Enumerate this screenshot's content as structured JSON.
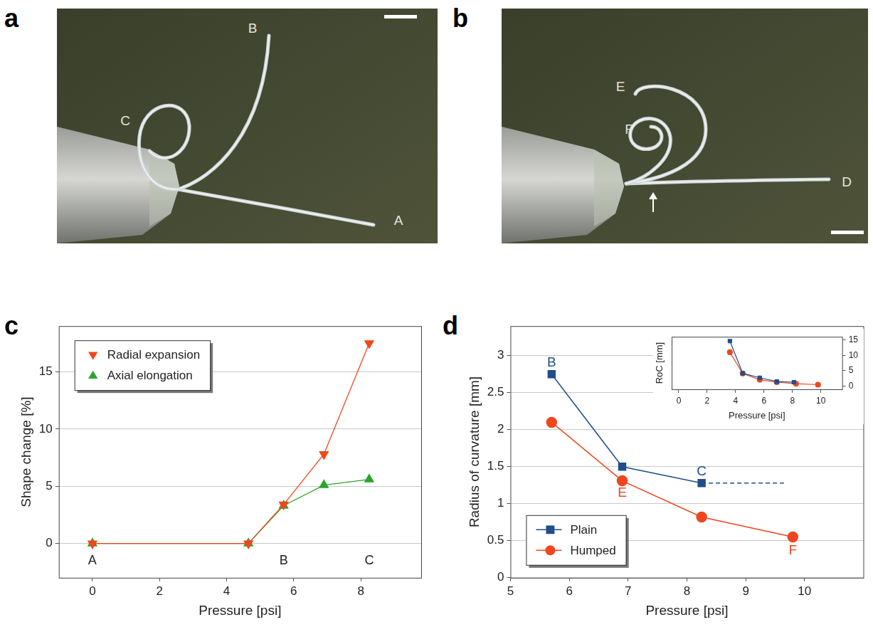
{
  "images": [
    {
      "panel": "a",
      "labels": [
        "A",
        "B",
        "C"
      ]
    },
    {
      "panel": "b",
      "labels": [
        "D",
        "E",
        "F"
      ]
    }
  ],
  "chart_data": [
    {
      "panel": "c",
      "type": "line",
      "x_label": "Pressure [psi]",
      "y_label": "Shape change [%]",
      "xlim": [
        -1,
        9.8
      ],
      "xticks": [
        0,
        2,
        4,
        6,
        8
      ],
      "ylim": [
        -3,
        19
      ],
      "yticks": [
        0,
        5,
        10,
        15
      ],
      "grid": "y",
      "legend": "upper left",
      "series": [
        {
          "name": "Radial expansion",
          "color": "#f0461e",
          "marker": "triangle_down",
          "x": [
            0,
            4.65,
            5.7,
            6.9,
            8.25
          ],
          "values": [
            0,
            0,
            3.4,
            7.8,
            17.5
          ]
        },
        {
          "name": "Axial elongation",
          "color": "#2aa52a",
          "marker": "triangle",
          "x": [
            0,
            4.65,
            5.7,
            6.9,
            8.25
          ],
          "values": [
            0,
            0,
            3.3,
            5.1,
            5.6
          ]
        }
      ],
      "annotations": [
        {
          "text": "A",
          "x": 0,
          "y": -1.5,
          "color": "#222222"
        },
        {
          "text": "B",
          "x": 5.7,
          "y": -1.5,
          "color": "#222222"
        },
        {
          "text": "C",
          "x": 8.25,
          "y": -1.5,
          "color": "#222222"
        }
      ]
    },
    {
      "panel": "d",
      "type": "line",
      "x_label": "Pressure [psi]",
      "y_label": "Radius of curvature [mm]",
      "xlim": [
        5,
        11
      ],
      "xticks": [
        5,
        6,
        7,
        8,
        9,
        10
      ],
      "ylim": [
        0,
        3.4
      ],
      "yticks": [
        0,
        0.5,
        1,
        1.5,
        2,
        2.5,
        3
      ],
      "grid": "y",
      "legend": "lower left",
      "series": [
        {
          "name": "Plain",
          "color": "#1f4e8c",
          "marker": "square",
          "x": [
            5.7,
            6.9,
            8.25
          ],
          "values": [
            2.75,
            1.5,
            1.28
          ]
        },
        {
          "name": "Humped",
          "color": "#f0461e",
          "marker": "circle",
          "x": [
            5.7,
            6.9,
            8.25,
            9.8
          ],
          "values": [
            2.1,
            1.31,
            0.82,
            0.55
          ]
        }
      ],
      "annotations": [
        {
          "type": "line",
          "x": [
            8.25,
            9.65
          ],
          "y": [
            1.28,
            1.28
          ],
          "line_style": "dashed",
          "color": "#1f4e8c"
        },
        {
          "text": "B",
          "x": 5.7,
          "y": 2.9,
          "color": "#1f4e8c"
        },
        {
          "text": "C",
          "x": 8.25,
          "y": 1.43,
          "color": "#1f4e8c"
        },
        {
          "text": "E",
          "x": 6.9,
          "y": 1.14,
          "color": "#f0461e"
        },
        {
          "text": "F",
          "x": 9.8,
          "y": 0.37,
          "color": "#f0461e"
        }
      ],
      "inset": {
        "type": "line",
        "x_label": "Pressure [psi]",
        "y_label": "RoC [mm]",
        "xlim": [
          -0.5,
          11.5
        ],
        "xticks": [
          0,
          2,
          4,
          6,
          8,
          10
        ],
        "ylim": [
          -1,
          16
        ],
        "yticks": [
          0,
          5,
          10,
          15
        ],
        "grid": false,
        "series": [
          {
            "name": "Plain",
            "color": "#1f4e8c",
            "marker": "square",
            "x": [
              3.6,
              4.5,
              5.7,
              6.9,
              8.1
            ],
            "values": [
              14.6,
              4.2,
              2.75,
              1.5,
              1.3
            ]
          },
          {
            "name": "Humped",
            "color": "#f0461e",
            "marker": "circle",
            "x": [
              3.6,
              4.5,
              5.7,
              6.9,
              8.25,
              9.8
            ],
            "values": [
              11,
              4.1,
              2.1,
              1.3,
              0.8,
              0.5
            ]
          }
        ]
      }
    }
  ]
}
